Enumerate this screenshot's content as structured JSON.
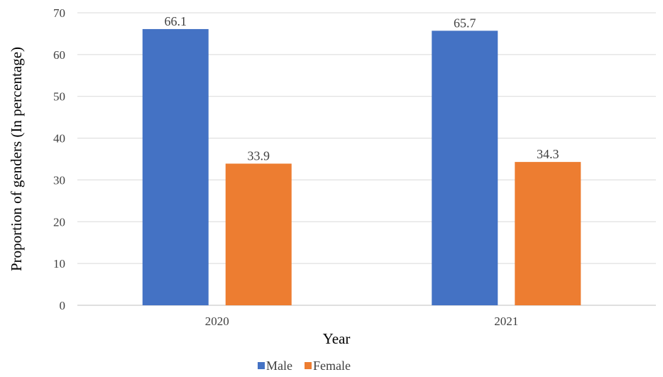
{
  "chart_data": {
    "type": "bar",
    "categories": [
      "2020",
      "2021"
    ],
    "series": [
      {
        "name": "Male",
        "values": [
          66.1,
          65.7
        ],
        "color": "#4472C4"
      },
      {
        "name": "Female",
        "values": [
          33.9,
          34.3
        ],
        "color": "#ED7D31"
      }
    ],
    "xlabel": "Year",
    "ylabel": "Proportion of genders (In percentage)",
    "ylim": [
      0,
      70
    ],
    "yticks": [
      0,
      10,
      20,
      30,
      40,
      50,
      60,
      70
    ],
    "grid": true,
    "legend_position": "bottom",
    "data_labels": [
      "66.1",
      "33.9",
      "65.7",
      "34.3"
    ]
  }
}
